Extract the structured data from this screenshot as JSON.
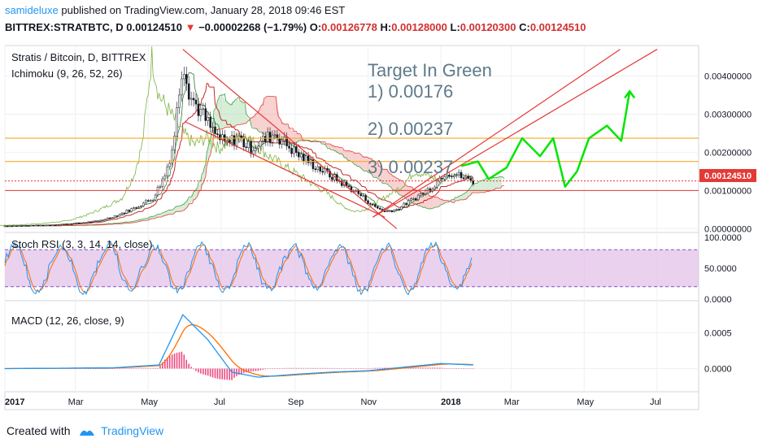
{
  "header": {
    "author": "samideluxe",
    "published_text": "published on TradingView.com, January 28, 2018 09:46 EST",
    "symbol": "BITTREX:STRATBTC, D",
    "last": "0.00124510",
    "change": "−0.00002268 (−1.79%)",
    "open_label": "O:",
    "open": "0.00126778",
    "high_label": "H:",
    "high": "0.00128000",
    "low_label": "L:",
    "low": "0.00120300",
    "close_label": "C:",
    "close": "0.00124510"
  },
  "main_pane": {
    "title": "Stratis / Bitcoin, D, BITTREX",
    "indicator": "Ichimoku (9, 26, 52, 26)",
    "price_badge": "0.00124510",
    "annotations": [
      "Target In Green",
      "1) 0.00176",
      "2) 0.00237",
      "3) 0.00237"
    ]
  },
  "stoch_pane": {
    "title": "Stoch RSI (3, 3, 14, 14, close)"
  },
  "macd_pane": {
    "title": "MACD (12, 26, close, 9)"
  },
  "footer": {
    "created_with": "Created with",
    "brand": "TradingView"
  },
  "colors": {
    "price": "#131722",
    "tenkan": "#2e7d32",
    "kijun": "#c62828",
    "chikou": "#7cb342",
    "cloud_bull": "#a5d6a7",
    "cloud_bear": "#ef9a9a",
    "trendline": "#e53935",
    "hline_orange": "#f9a825",
    "target_path": "#00e600",
    "annotation": "#5f7a8a",
    "stoch_k": "#2196f3",
    "stoch_d": "#ff6d00",
    "stoch_band": "#e1bee7",
    "macd_line": "#2196f3",
    "signal_line": "#ff6d00",
    "histogram": "#e91e63",
    "badge": "#e53935"
  },
  "chart_data": [
    {
      "type": "line",
      "title": "Stratis / Bitcoin, D, BITTREX",
      "x_ticks": [
        "2017",
        "Mar",
        "May",
        "Jul",
        "Sep",
        "Nov",
        "2018",
        "Mar",
        "May",
        "Jul"
      ],
      "x_range": [
        "2017-01-01",
        "2018-07-31"
      ],
      "y_ticks": [
        "0.00000000",
        "0.00100000",
        "0.00200000",
        "0.00300000",
        "0.00400000"
      ],
      "ylim": [
        -0.0001,
        0.0048
      ],
      "series": [
        {
          "x": [
            "2017-01-01",
            "2017-01-20",
            "2017-02-10",
            "2017-03-01",
            "2017-03-20",
            "2017-04-05",
            "2017-04-20",
            "2017-05-05",
            "2017-05-15",
            "2017-05-22",
            "2017-05-30",
            "2017-06-05",
            "2017-06-15",
            "2017-06-25",
            "2017-07-05",
            "2017-07-15",
            "2017-07-25",
            "2017-08-05",
            "2017-08-15",
            "2017-08-25",
            "2017-09-05",
            "2017-09-15",
            "2017-09-25",
            "2017-10-05",
            "2017-10-15",
            "2017-10-25",
            "2017-11-05",
            "2017-11-15",
            "2017-11-25",
            "2017-12-05",
            "2017-12-15",
            "2017-12-25",
            "2018-01-05",
            "2018-01-15",
            "2018-01-28"
          ],
          "y": [
            7e-05,
            8e-05,
            0.0001,
            0.00014,
            0.0002,
            0.00035,
            0.00055,
            0.0008,
            0.0014,
            0.0022,
            0.0045,
            0.0035,
            0.003,
            0.0025,
            0.0022,
            0.0024,
            0.0021,
            0.0023,
            0.0025,
            0.0022,
            0.0019,
            0.0017,
            0.0015,
            0.0013,
            0.0011,
            0.0009,
            0.0006,
            0.00045,
            0.0005,
            0.0007,
            0.0009,
            0.0011,
            0.0015,
            0.0014,
            0.0012451
          ]
        }
      ],
      "horizontal_levels": [
        0.00237,
        0.00176,
        0.00125,
        0.001
      ],
      "trendlines": [
        {
          "from": [
            "2017-05-30",
            0.0047
          ],
          "to": [
            "2017-11-25",
            0.0
          ]
        },
        {
          "from": [
            "2017-06-01",
            0.0028
          ],
          "to": [
            "2017-11-15",
            0.0003
          ]
        },
        {
          "from": [
            "2017-11-05",
            0.0003
          ],
          "to": [
            "2018-05-31",
            0.0047
          ]
        },
        {
          "from": [
            "2017-11-05",
            0.0003
          ],
          "to": [
            "2018-07-01",
            0.0047
          ]
        }
      ],
      "projection_path": {
        "x": [
          "2018-01-18",
          "2018-02-01",
          "2018-02-10",
          "2018-02-25",
          "2018-03-10",
          "2018-03-25",
          "2018-04-05",
          "2018-04-15",
          "2018-04-25",
          "2018-05-05",
          "2018-05-20",
          "2018-06-01",
          "2018-06-08"
        ],
        "y": [
          0.00164,
          0.00176,
          0.0013,
          0.0016,
          0.00237,
          0.0019,
          0.00237,
          0.0011,
          0.0015,
          0.00237,
          0.0027,
          0.0023,
          0.0036
        ]
      }
    },
    {
      "type": "line",
      "title": "Stoch RSI (3, 3, 14, 14, close)",
      "y_ticks": [
        "0.0000",
        "50.0000",
        "100.0000"
      ],
      "ylim": [
        0,
        100
      ],
      "band": [
        20,
        80
      ]
    },
    {
      "type": "line",
      "title": "MACD (12, 26, close, 9)",
      "y_ticks": [
        "0.0000",
        "0.0005"
      ],
      "ylim": [
        -0.0003,
        0.0009
      ],
      "series": [
        {
          "name": "MACD",
          "x": [
            "2017-01-01",
            "2017-04-01",
            "2017-05-10",
            "2017-05-30",
            "2017-06-20",
            "2017-07-10",
            "2017-08-01",
            "2017-09-01",
            "2017-10-01",
            "2017-11-01",
            "2017-12-01",
            "2018-01-01",
            "2018-01-28"
          ],
          "y": [
            0,
            1e-05,
            5e-05,
            0.00075,
            0.0004,
            -5e-05,
            -0.00012,
            -8e-05,
            -5e-05,
            -3e-05,
            2e-05,
            7e-05,
            5e-05
          ]
        }
      ]
    }
  ]
}
